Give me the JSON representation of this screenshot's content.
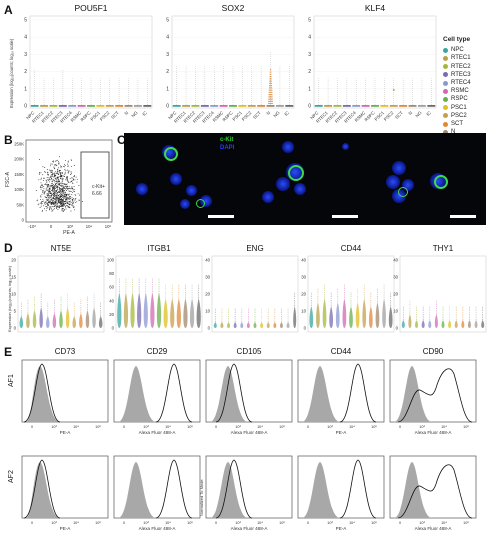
{
  "panel_letters": [
    "A",
    "B",
    "C",
    "D",
    "E"
  ],
  "legend": {
    "title": "Cell type",
    "items": [
      {
        "label": "NPC",
        "color": "#3aa6a0"
      },
      {
        "label": "RTEC1",
        "color": "#b8a24a"
      },
      {
        "label": "RTEC2",
        "color": "#a6b83a"
      },
      {
        "label": "RTEC3",
        "color": "#7b6bb0"
      },
      {
        "label": "RTEC4",
        "color": "#8a9ad0"
      },
      {
        "label": "RSMC",
        "color": "#d268b0"
      },
      {
        "label": "RSPC",
        "color": "#6ab04a"
      },
      {
        "label": "PSC1",
        "color": "#e0c020"
      },
      {
        "label": "PSC2",
        "color": "#c7a04a"
      },
      {
        "label": "SCT",
        "color": "#e08838"
      },
      {
        "label": "N",
        "color": "#a08a70"
      },
      {
        "label": "NG",
        "color": "#a0a0a0"
      },
      {
        "label": "IC",
        "color": "#6a6a6a"
      }
    ]
  },
  "panelA": {
    "ylabel": "Expression (log₁₀(counts; log₁₀ scale)",
    "yticks": [
      "0",
      "1",
      "2",
      "3",
      "4",
      "5"
    ],
    "categories": [
      "NPC",
      "RTEC1",
      "RTEC2",
      "RTEC3",
      "RTEC4",
      "RSMC",
      "RSPC",
      "PSC1",
      "PSC2",
      "SCT",
      "N",
      "NG",
      "IC"
    ],
    "genes": [
      "POU5F1",
      "SOX2",
      "KLF4"
    ]
  },
  "panelB": {
    "ylabel": "FSC-A",
    "xlabel": "PE-A",
    "gate_label": "c-Kit+",
    "gate_value": "6.66",
    "yticks": [
      "250K",
      "200K",
      "150K",
      "100K",
      "50K",
      "0"
    ],
    "xticks": [
      "-10³",
      "0",
      "10³",
      "10⁴",
      "10⁵"
    ]
  },
  "panelC": {
    "label_green": "c-Kit",
    "label_blue": "DAPI"
  },
  "panelD": {
    "ylabel": "Expression (log₁₀(counts; log₁₀ scale)",
    "genes": [
      "NT5E",
      "ITGB1",
      "ENG",
      "CD44",
      "THY1"
    ],
    "yticks": [
      [
        "0",
        "5",
        "10",
        "15",
        "20"
      ],
      [
        "0",
        "20",
        "40",
        "60",
        "80",
        "100"
      ],
      [
        "0",
        "10",
        "20",
        "30",
        "40"
      ],
      [
        "0",
        "10",
        "20",
        "30",
        "40"
      ],
      [
        "0",
        "10",
        "20",
        "30",
        "40"
      ]
    ]
  },
  "panelE": {
    "markers": [
      "CD73",
      "CD29",
      "CD105",
      "CD44",
      "CD90"
    ],
    "rows": [
      "AF1",
      "AF2"
    ],
    "xlabels": [
      "PE-A",
      "Alexa Fluor 488-A",
      "Alexa Fluor 488-A",
      "PE-A",
      "Alexa Fluor 488-A"
    ],
    "ylabel_normalized": "Normalized To Mode",
    "xticks": [
      "0",
      "10³",
      "10⁴",
      "10⁵"
    ]
  },
  "chart_data": [
    {
      "type": "violin",
      "panel": "A",
      "title": "POU5F1",
      "categories": [
        "NPC",
        "RTEC1",
        "RTEC2",
        "RTEC3",
        "RTEC4",
        "RSMC",
        "RSPC",
        "PSC1",
        "PSC2",
        "SCT",
        "N",
        "NG",
        "IC"
      ],
      "ylim": [
        0,
        5
      ]
    },
    {
      "type": "violin",
      "panel": "A",
      "title": "SOX2",
      "categories": [
        "NPC",
        "RTEC1",
        "RTEC2",
        "RTEC3",
        "RTEC4",
        "RSMC",
        "RSPC",
        "PSC1",
        "PSC2",
        "SCT",
        "N",
        "NG",
        "IC"
      ],
      "ylim": [
        0,
        5
      ]
    },
    {
      "type": "violin",
      "panel": "A",
      "title": "KLF4",
      "categories": [
        "NPC",
        "RTEC1",
        "RTEC2",
        "RTEC3",
        "RTEC4",
        "RSMC",
        "RSPC",
        "PSC1",
        "PSC2",
        "SCT",
        "N",
        "NG",
        "IC"
      ],
      "ylim": [
        0,
        5
      ]
    },
    {
      "type": "scatter",
      "panel": "B",
      "xlabel": "PE-A",
      "ylabel": "FSC-A",
      "gate": {
        "label": "c-Kit+",
        "percent": 6.66
      }
    },
    {
      "type": "violin",
      "panel": "D",
      "title": "NT5E",
      "ylim": [
        0,
        20
      ]
    },
    {
      "type": "violin",
      "panel": "D",
      "title": "ITGB1",
      "ylim": [
        0,
        100
      ]
    },
    {
      "type": "violin",
      "panel": "D",
      "title": "ENG",
      "ylim": [
        0,
        40
      ]
    },
    {
      "type": "violin",
      "panel": "D",
      "title": "CD44",
      "ylim": [
        0,
        40
      ]
    },
    {
      "type": "violin",
      "panel": "D",
      "title": "THY1",
      "ylim": [
        0,
        40
      ]
    },
    {
      "type": "histogram",
      "panel": "E",
      "titles": [
        "CD73",
        "CD29",
        "CD105",
        "CD44",
        "CD90"
      ],
      "rows": [
        "AF1",
        "AF2"
      ]
    }
  ]
}
